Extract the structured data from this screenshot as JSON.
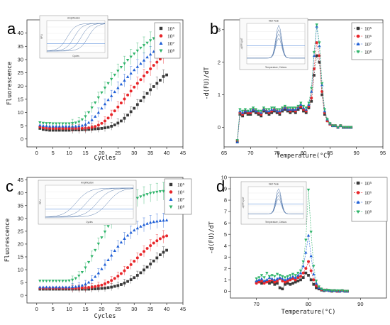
{
  "chart_data": [
    {
      "panel": "a",
      "type": "line",
      "xlabel": "Cycles",
      "ylabel": "Fluorescence",
      "xlim": [
        -3,
        45
      ],
      "ylim": [
        -3,
        45
      ],
      "xticks": [
        0,
        5,
        10,
        15,
        20,
        25,
        30,
        35,
        40,
        45
      ],
      "yticks": [
        0,
        5,
        10,
        15,
        20,
        25,
        30,
        35,
        40
      ],
      "legend": "top-right",
      "x": [
        1,
        2,
        3,
        4,
        5,
        6,
        7,
        8,
        9,
        10,
        11,
        12,
        13,
        14,
        15,
        16,
        17,
        18,
        19,
        20,
        21,
        22,
        23,
        24,
        25,
        26,
        27,
        28,
        29,
        30,
        31,
        32,
        33,
        34,
        35,
        36,
        37,
        38,
        39,
        40
      ],
      "series": [
        {
          "name": "10^5",
          "marker": "square",
          "color": "#3a3a3a",
          "values": [
            4.0,
            3.6,
            3.4,
            3.3,
            3.3,
            3.3,
            3.3,
            3.3,
            3.3,
            3.3,
            3.4,
            3.4,
            3.4,
            3.5,
            3.5,
            3.6,
            3.7,
            3.8,
            3.9,
            4.0,
            4.2,
            4.4,
            4.8,
            5.3,
            6.0,
            6.8,
            7.8,
            9.0,
            10.3,
            11.6,
            13.0,
            14.4,
            15.8,
            17.2,
            18.6,
            19.8,
            21.0,
            22.2,
            23.6,
            24.2
          ]
        },
        {
          "name": "10^6",
          "marker": "circle",
          "color": "#e8262a",
          "values": [
            4.6,
            4.2,
            4.1,
            4.0,
            4.0,
            4.0,
            4.0,
            4.0,
            4.0,
            4.0,
            4.0,
            4.0,
            4.0,
            4.0,
            4.1,
            4.2,
            4.4,
            4.7,
            5.2,
            5.9,
            6.8,
            7.9,
            9.2,
            10.6,
            12.1,
            13.6,
            15.1,
            16.6,
            18.1,
            19.6,
            21.0,
            22.4,
            23.8,
            25.2,
            26.5,
            27.8,
            29.0,
            30.2,
            31.4,
            32.5
          ]
        },
        {
          "name": "10^7",
          "marker": "triangle-up",
          "color": "#1f5fd6",
          "values": [
            5.2,
            5.0,
            4.9,
            4.8,
            4.8,
            4.8,
            4.8,
            4.8,
            4.8,
            4.8,
            4.8,
            4.8,
            4.9,
            5.1,
            5.5,
            6.2,
            7.2,
            8.5,
            10.0,
            11.6,
            13.2,
            14.8,
            16.3,
            17.8,
            19.3,
            20.7,
            22.1,
            23.5,
            24.8,
            26.1,
            27.3,
            28.5,
            29.7,
            30.9,
            32.0,
            33.0,
            34.0,
            35.0,
            36.0,
            36.8
          ]
        },
        {
          "name": "10^8",
          "marker": "triangle-down",
          "color": "#2fb46a",
          "values": [
            6.2,
            6.0,
            5.9,
            5.9,
            5.8,
            5.8,
            5.8,
            5.8,
            5.8,
            5.8,
            5.9,
            6.1,
            6.5,
            7.3,
            8.5,
            10.0,
            11.8,
            13.7,
            15.6,
            17.5,
            19.3,
            21.0,
            22.6,
            24.2,
            25.7,
            27.1,
            28.5,
            29.8,
            31.0,
            32.2,
            33.3,
            34.4,
            35.4,
            36.3,
            37.2,
            38.0,
            38.7,
            39.4,
            40.0,
            40.5
          ]
        }
      ]
    },
    {
      "panel": "b",
      "type": "line",
      "xlabel": "Temperature(°C)",
      "ylabel": "-d(FU)/dT",
      "xlim": [
        65,
        95
      ],
      "ylim": [
        -0.6,
        3.3
      ],
      "xticks": [
        65,
        70,
        75,
        80,
        85,
        90,
        95
      ],
      "yticks": [
        0,
        1,
        2,
        3
      ],
      "legend": "top-right",
      "x": [
        67.5,
        68,
        68.5,
        69,
        69.5,
        70,
        70.5,
        71,
        71.5,
        72,
        72.5,
        73,
        73.5,
        74,
        74.5,
        75,
        75.5,
        76,
        76.5,
        77,
        77.5,
        78,
        78.5,
        79,
        79.5,
        80,
        80.5,
        81,
        81.5,
        82,
        82.5,
        83,
        83.5,
        84,
        84.5,
        85,
        85.5,
        86,
        86.5,
        87,
        87.5,
        88,
        88.5,
        89
      ],
      "series": [
        {
          "name": "10^5",
          "marker": "square",
          "color": "#3a3a3a",
          "values": [
            -0.45,
            0.4,
            0.35,
            0.45,
            0.4,
            0.4,
            0.5,
            0.45,
            0.4,
            0.35,
            0.5,
            0.45,
            0.4,
            0.45,
            0.5,
            0.45,
            0.4,
            0.5,
            0.55,
            0.5,
            0.45,
            0.5,
            0.45,
            0.55,
            0.6,
            0.5,
            0.45,
            0.6,
            0.8,
            1.6,
            2.2,
            2.0,
            1.0,
            0.4,
            0.2,
            0.1,
            0.05,
            0.05,
            0.0,
            0.05,
            0.0,
            0.0,
            0.0,
            0.0
          ]
        },
        {
          "name": "10^6",
          "marker": "circle",
          "color": "#e8262a",
          "values": [
            -0.4,
            0.45,
            0.4,
            0.5,
            0.45,
            0.45,
            0.55,
            0.5,
            0.45,
            0.4,
            0.55,
            0.5,
            0.45,
            0.5,
            0.55,
            0.5,
            0.45,
            0.55,
            0.6,
            0.55,
            0.5,
            0.55,
            0.5,
            0.6,
            0.65,
            0.55,
            0.5,
            0.65,
            0.9,
            1.8,
            2.6,
            2.2,
            1.1,
            0.45,
            0.2,
            0.1,
            0.05,
            0.05,
            0.0,
            0.05,
            0.0,
            0.0,
            0.0,
            0.0
          ]
        },
        {
          "name": "10^7",
          "marker": "triangle-up",
          "color": "#1f5fd6",
          "values": [
            -0.45,
            0.5,
            0.45,
            0.5,
            0.5,
            0.5,
            0.55,
            0.5,
            0.5,
            0.45,
            0.55,
            0.5,
            0.5,
            0.55,
            0.55,
            0.5,
            0.5,
            0.55,
            0.6,
            0.55,
            0.55,
            0.55,
            0.55,
            0.6,
            0.7,
            0.6,
            0.55,
            0.7,
            1.1,
            2.2,
            3.1,
            2.5,
            1.3,
            0.5,
            0.25,
            0.12,
            0.05,
            0.05,
            0.0,
            0.05,
            0.0,
            0.0,
            0.0,
            0.0
          ]
        },
        {
          "name": "10^8",
          "marker": "triangle-down",
          "color": "#2fb46a",
          "values": [
            -0.4,
            0.55,
            0.5,
            0.55,
            0.5,
            0.55,
            0.6,
            0.55,
            0.5,
            0.5,
            0.6,
            0.55,
            0.55,
            0.6,
            0.6,
            0.55,
            0.55,
            0.6,
            0.65,
            0.6,
            0.6,
            0.6,
            0.6,
            0.65,
            0.75,
            0.65,
            0.6,
            0.75,
            1.2,
            2.3,
            3.15,
            2.6,
            1.35,
            0.55,
            0.25,
            0.12,
            0.05,
            0.05,
            0.0,
            0.05,
            0.0,
            0.0,
            0.0,
            0.0
          ]
        }
      ]
    },
    {
      "panel": "c",
      "type": "line",
      "xlabel": "Cycles",
      "ylabel": "Fluorescence",
      "xlim": [
        -3,
        45
      ],
      "ylim": [
        -3,
        46
      ],
      "xticks": [
        0,
        5,
        10,
        15,
        20,
        25,
        30,
        35,
        40,
        45
      ],
      "yticks": [
        0,
        5,
        10,
        15,
        20,
        25,
        30,
        35,
        40,
        45
      ],
      "legend": "top-right",
      "x": [
        1,
        2,
        3,
        4,
        5,
        6,
        7,
        8,
        9,
        10,
        11,
        12,
        13,
        14,
        15,
        16,
        17,
        18,
        19,
        20,
        21,
        22,
        23,
        24,
        25,
        26,
        27,
        28,
        29,
        30,
        31,
        32,
        33,
        34,
        35,
        36,
        37,
        38,
        39,
        40
      ],
      "series": [
        {
          "name": "10^5",
          "marker": "square",
          "color": "#3a3a3a",
          "values": [
            2.4,
            2.4,
            2.4,
            2.4,
            2.4,
            2.4,
            2.4,
            2.4,
            2.4,
            2.4,
            2.4,
            2.4,
            2.4,
            2.4,
            2.4,
            2.4,
            2.5,
            2.5,
            2.6,
            2.7,
            2.8,
            3.0,
            3.2,
            3.5,
            3.8,
            4.2,
            4.8,
            5.4,
            6.1,
            6.9,
            7.8,
            8.8,
            9.9,
            11.0,
            12.2,
            13.4,
            14.6,
            15.8,
            16.8,
            17.6
          ]
        },
        {
          "name": "10^6",
          "marker": "circle",
          "color": "#e8262a",
          "values": [
            2.8,
            2.8,
            2.8,
            2.8,
            2.8,
            2.8,
            2.8,
            2.8,
            2.8,
            2.8,
            2.8,
            2.8,
            2.8,
            2.9,
            3.0,
            3.1,
            3.2,
            3.4,
            3.7,
            4.0,
            4.5,
            5.1,
            5.8,
            6.6,
            7.5,
            8.5,
            9.6,
            10.8,
            12.0,
            13.3,
            14.6,
            15.9,
            17.1,
            18.3,
            19.4,
            20.4,
            21.3,
            22.1,
            22.8,
            23.2
          ]
        },
        {
          "name": "10^7",
          "marker": "triangle-up",
          "color": "#1f5fd6",
          "values": [
            3.2,
            3.2,
            3.2,
            3.2,
            3.2,
            3.2,
            3.2,
            3.2,
            3.2,
            3.2,
            3.3,
            3.4,
            3.6,
            3.9,
            4.4,
            5.1,
            6.1,
            7.3,
            8.7,
            10.3,
            12.0,
            13.8,
            15.6,
            17.4,
            19.1,
            20.7,
            22.1,
            23.4,
            24.5,
            25.4,
            26.2,
            26.9,
            27.5,
            28.0,
            28.4,
            28.7,
            28.9,
            29.1,
            29.2,
            29.3
          ]
        },
        {
          "name": "10^8",
          "marker": "triangle-down",
          "color": "#2fb46a",
          "values": [
            5.6,
            5.6,
            5.6,
            5.6,
            5.6,
            5.6,
            5.6,
            5.6,
            5.6,
            5.7,
            6.0,
            6.6,
            7.6,
            9.0,
            10.8,
            12.9,
            15.2,
            17.6,
            20.1,
            22.5,
            24.8,
            26.9,
            28.8,
            30.5,
            32.0,
            33.3,
            34.5,
            35.5,
            36.4,
            37.2,
            37.9,
            38.5,
            39.0,
            39.4,
            39.8,
            40.1,
            40.3,
            40.5,
            40.6,
            40.7
          ]
        }
      ]
    },
    {
      "panel": "d",
      "type": "line",
      "xlabel": "Temperature(°C)",
      "ylabel": "-d(FU)/dT",
      "xlim": [
        65,
        95
      ],
      "ylim": [
        -0.6,
        10
      ],
      "xticks": [
        70,
        80,
        90
      ],
      "yticks": [
        0,
        1,
        2,
        3,
        4,
        5,
        6,
        7,
        8,
        9,
        10
      ],
      "legend": "top-right",
      "x": [
        70,
        70.5,
        71,
        71.5,
        72,
        72.5,
        73,
        73.5,
        74,
        74.5,
        75,
        75.5,
        76,
        76.5,
        77,
        77.5,
        78,
        78.5,
        79,
        79.5,
        80,
        80.5,
        81,
        81.5,
        82,
        82.5,
        83,
        83.5,
        84,
        84.5,
        85,
        85.5,
        86,
        86.5,
        87,
        87.5
      ],
      "series": [
        {
          "name": "10^5",
          "marker": "square",
          "color": "#3a3a3a",
          "values": [
            0.8,
            0.9,
            0.7,
            0.8,
            0.9,
            0.7,
            0.8,
            0.6,
            0.7,
            0.3,
            0.2,
            0.6,
            0.7,
            0.6,
            0.7,
            0.8,
            0.9,
            1.0,
            1.2,
            1.6,
            1.4,
            1.0,
            0.6,
            0.3,
            0.2,
            0.1,
            0.05,
            0.1,
            0.05,
            0.0,
            0.05,
            0.0,
            0.0,
            0.05,
            0.0,
            0.0
          ]
        },
        {
          "name": "10^6",
          "marker": "circle",
          "color": "#e8262a",
          "values": [
            0.7,
            0.8,
            0.9,
            0.7,
            0.8,
            0.9,
            1.0,
            0.8,
            0.9,
            1.1,
            0.9,
            0.8,
            0.9,
            1.0,
            1.1,
            1.0,
            1.2,
            1.3,
            1.6,
            2.0,
            2.6,
            1.8,
            1.0,
            0.5,
            0.3,
            0.15,
            0.1,
            0.1,
            0.05,
            0.05,
            0.05,
            0.0,
            0.0,
            0.05,
            0.0,
            0.0
          ]
        },
        {
          "name": "10^7",
          "marker": "triangle-up",
          "color": "#1f5fd6",
          "values": [
            0.9,
            1.0,
            1.1,
            0.9,
            1.0,
            1.2,
            1.1,
            1.0,
            1.1,
            1.2,
            1.1,
            1.0,
            1.1,
            1.2,
            1.3,
            1.2,
            1.4,
            1.6,
            2.2,
            3.4,
            4.9,
            3.1,
            1.5,
            0.7,
            0.3,
            0.2,
            0.1,
            0.1,
            0.05,
            0.05,
            0.05,
            0.05,
            0.0,
            0.05,
            0.0,
            0.0
          ]
        },
        {
          "name": "10^8",
          "marker": "triangle-down",
          "color": "#2fb46a",
          "values": [
            1.1,
            1.2,
            1.4,
            1.2,
            1.6,
            1.3,
            1.4,
            1.3,
            1.5,
            1.4,
            1.3,
            1.2,
            1.3,
            1.4,
            1.5,
            1.4,
            1.6,
            1.8,
            2.6,
            4.5,
            8.9,
            5.2,
            2.2,
            0.9,
            0.4,
            0.2,
            0.1,
            0.1,
            0.1,
            0.05,
            0.05,
            0.05,
            0.05,
            0.05,
            0.0,
            0.0
          ]
        }
      ]
    }
  ],
  "insets": {
    "a": {
      "title": "Amplification",
      "xlabel": "Cycles",
      "ylabel": "RFU"
    },
    "b": {
      "title": "Melt Peak",
      "xlabel": "Temperature, Celsius",
      "ylabel": "-d(RFU)/dT"
    },
    "c": {
      "title": "Amplification",
      "xlabel": "Cycles",
      "ylabel": "RFU"
    },
    "d": {
      "title": "Melt Peak",
      "xlabel": "Temperature, Celsius",
      "ylabel": "-d(RFU)/dT"
    }
  },
  "panel_letters": [
    "a",
    "b",
    "c",
    "d"
  ],
  "legend_labels": {
    "a": [
      "10⁵",
      "10⁶",
      "10⁷",
      "10⁸"
    ],
    "b": [
      "10⁵",
      "10⁶",
      "10⁷",
      "10⁸"
    ],
    "c": [
      "10⁵",
      "10⁶",
      "10⁷",
      "10⁸"
    ],
    "d": [
      "10⁵",
      "10⁶",
      "10⁷",
      "10⁸"
    ]
  }
}
